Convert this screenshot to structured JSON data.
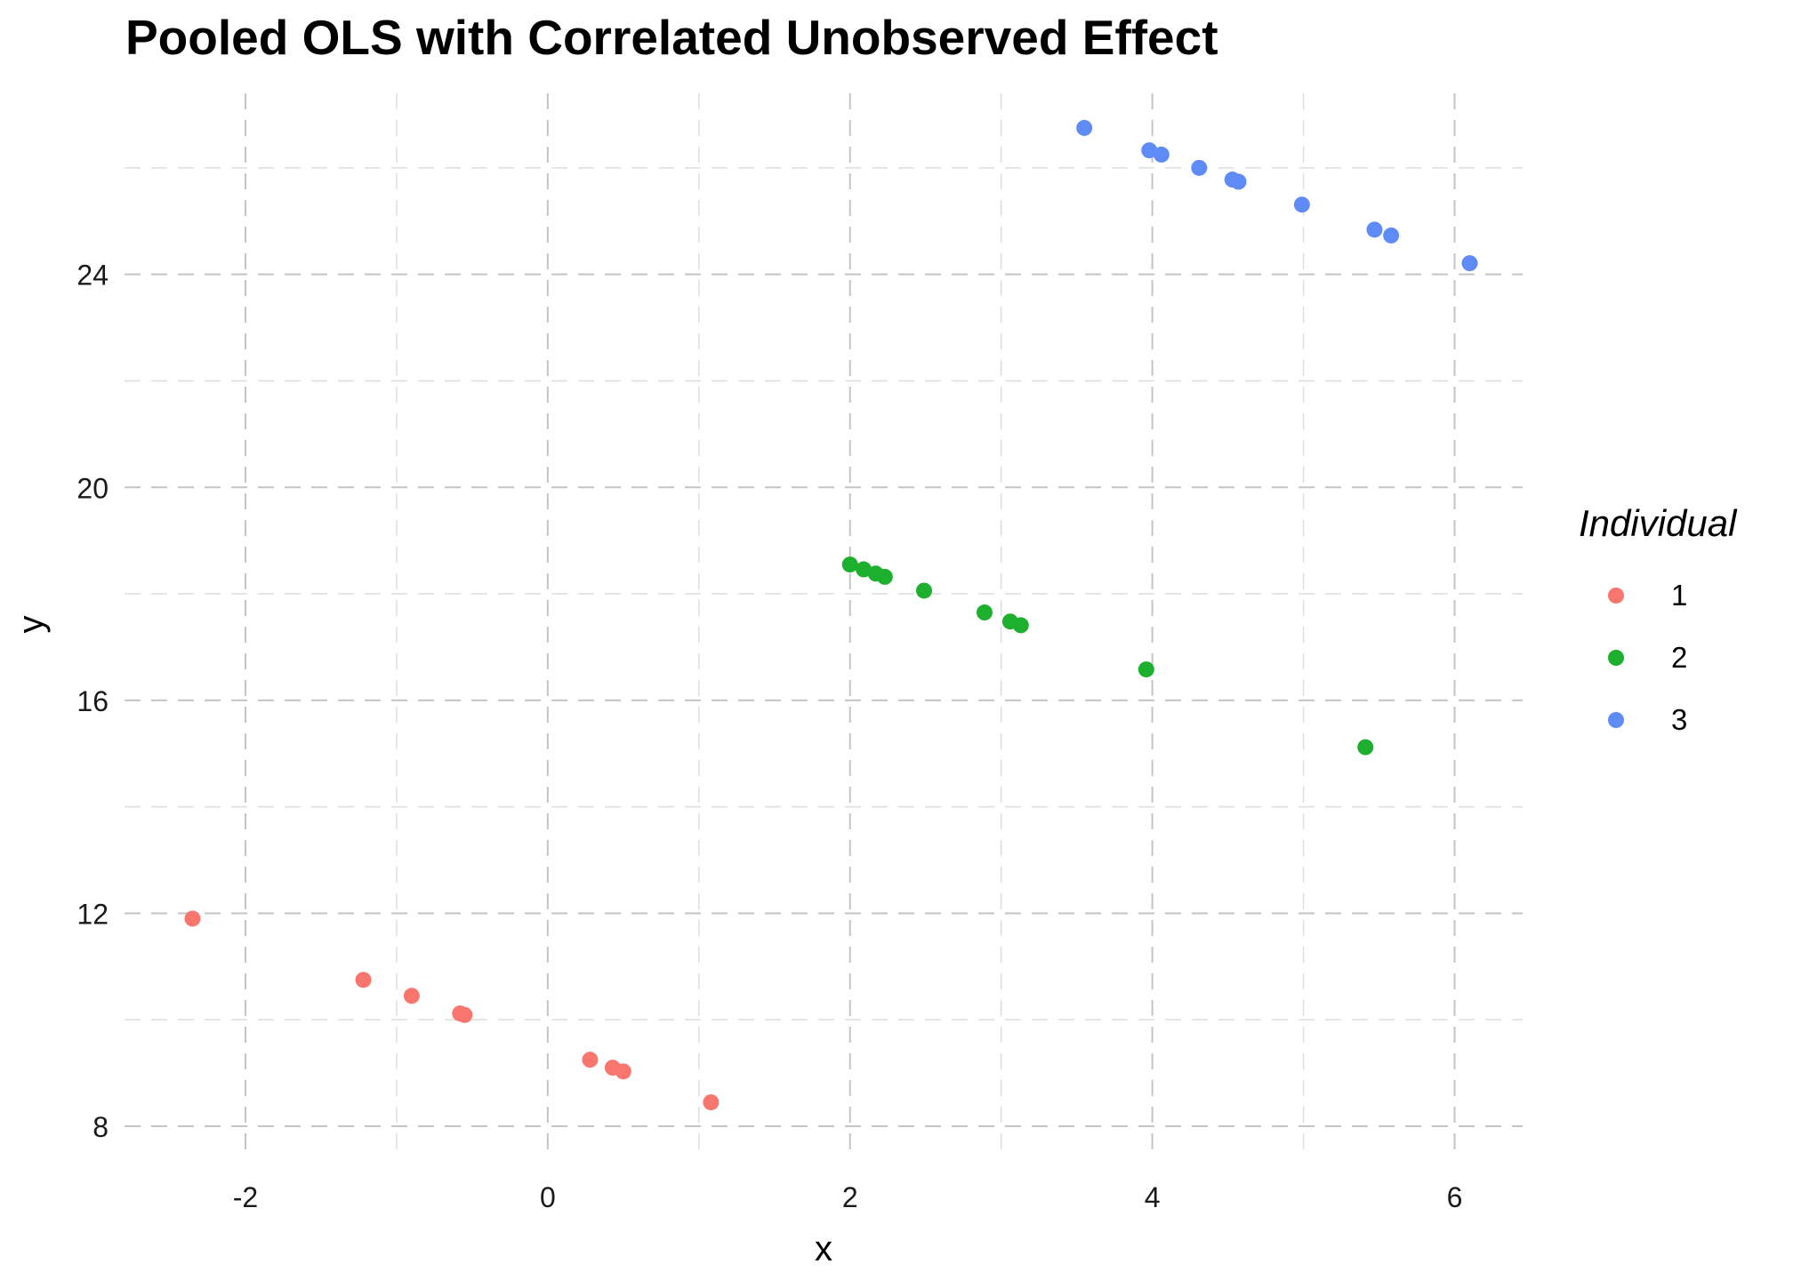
{
  "chart_data": {
    "type": "scatter",
    "title": "Pooled OLS with Correlated Unobserved Effect",
    "xlabel": "x",
    "ylabel": "y",
    "xlim": [
      -2.8,
      6.45
    ],
    "ylim": [
      7.45,
      27.4
    ],
    "x_ticks": [
      -2,
      0,
      2,
      4,
      6
    ],
    "x_tick_labels": [
      "-2",
      "0",
      "2",
      "4",
      "6"
    ],
    "y_ticks": [
      8,
      12,
      16,
      20,
      24
    ],
    "y_tick_labels": [
      "8",
      "12",
      "16",
      "20",
      "24"
    ],
    "x_minor_ticks": [
      -1,
      1,
      3,
      5
    ],
    "y_minor_ticks": [
      10,
      14,
      18,
      22,
      26
    ],
    "grid": true,
    "legend": {
      "title": "Individual",
      "position": "right"
    },
    "series": [
      {
        "name": "1",
        "color": "#F8766D",
        "points": [
          {
            "x": -2.35,
            "y": 11.9
          },
          {
            "x": -1.22,
            "y": 10.75
          },
          {
            "x": -0.9,
            "y": 10.45
          },
          {
            "x": -0.58,
            "y": 10.12
          },
          {
            "x": -0.55,
            "y": 10.09
          },
          {
            "x": 0.28,
            "y": 9.25
          },
          {
            "x": 0.43,
            "y": 9.1
          },
          {
            "x": 0.5,
            "y": 9.03
          },
          {
            "x": 1.08,
            "y": 8.45
          }
        ]
      },
      {
        "name": "2",
        "color": "#1DAF2E",
        "points": [
          {
            "x": 2.0,
            "y": 18.55
          },
          {
            "x": 2.09,
            "y": 18.46
          },
          {
            "x": 2.17,
            "y": 18.38
          },
          {
            "x": 2.23,
            "y": 18.32
          },
          {
            "x": 2.49,
            "y": 18.06
          },
          {
            "x": 2.89,
            "y": 17.65
          },
          {
            "x": 3.06,
            "y": 17.48
          },
          {
            "x": 3.13,
            "y": 17.41
          },
          {
            "x": 3.96,
            "y": 16.58
          },
          {
            "x": 5.41,
            "y": 15.12
          }
        ]
      },
      {
        "name": "3",
        "color": "#5F8BF6",
        "points": [
          {
            "x": 3.55,
            "y": 26.75
          },
          {
            "x": 3.98,
            "y": 26.33
          },
          {
            "x": 4.06,
            "y": 26.25
          },
          {
            "x": 4.31,
            "y": 26.0
          },
          {
            "x": 4.53,
            "y": 25.78
          },
          {
            "x": 4.57,
            "y": 25.74
          },
          {
            "x": 4.99,
            "y": 25.31
          },
          {
            "x": 5.47,
            "y": 24.84
          },
          {
            "x": 5.58,
            "y": 24.73
          },
          {
            "x": 6.1,
            "y": 24.21
          }
        ]
      }
    ]
  }
}
